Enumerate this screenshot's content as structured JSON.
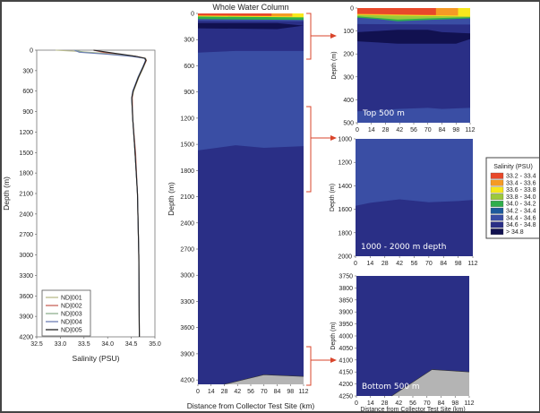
{
  "chart_data": [
    {
      "id": "profile",
      "type": "line",
      "title": "",
      "xlabel": "Salinity (PSU)",
      "ylabel": "Depth (m)",
      "xlim": [
        32.5,
        35.0
      ],
      "ylim": [
        0,
        4200
      ],
      "y_inverted": true,
      "xticks": [
        "32.5",
        "33.0",
        "33.5",
        "34.0",
        "34.5",
        "35.0"
      ],
      "yticks": [
        "0",
        "300",
        "600",
        "900",
        "1200",
        "1500",
        "1800",
        "2100",
        "2400",
        "2700",
        "3000",
        "3300",
        "3600",
        "3900",
        "4200"
      ],
      "legend_placement": "bottom-left",
      "series": [
        {
          "name": "ND|001",
          "color": "#b9bb8c",
          "points": [
            [
              0,
              32.9
            ],
            [
              20,
              33.4
            ],
            [
              50,
              34.0
            ],
            [
              80,
              34.5
            ],
            [
              120,
              34.8
            ],
            [
              150,
              34.82
            ],
            [
              250,
              34.76
            ],
            [
              400,
              34.66
            ],
            [
              600,
              34.55
            ],
            [
              700,
              34.52
            ],
            [
              1000,
              34.53
            ],
            [
              1500,
              34.58
            ],
            [
              2100,
              34.63
            ],
            [
              3000,
              34.66
            ],
            [
              4200,
              34.67
            ]
          ]
        },
        {
          "name": "ND|002",
          "color": "#c8645a",
          "points": [
            [
              0,
              33.7
            ],
            [
              30,
              33.9
            ],
            [
              60,
              34.2
            ],
            [
              90,
              34.6
            ],
            [
              120,
              34.8
            ],
            [
              150,
              34.82
            ],
            [
              250,
              34.75
            ],
            [
              400,
              34.65
            ],
            [
              600,
              34.54
            ],
            [
              700,
              34.52
            ],
            [
              1000,
              34.53
            ],
            [
              1500,
              34.59
            ],
            [
              2100,
              34.63
            ],
            [
              3000,
              34.66
            ],
            [
              4200,
              34.67
            ]
          ]
        },
        {
          "name": "ND|003",
          "color": "#8fb08f",
          "points": [
            [
              0,
              33.3
            ],
            [
              30,
              33.5
            ],
            [
              60,
              34.1
            ],
            [
              90,
              34.55
            ],
            [
              120,
              34.8
            ],
            [
              150,
              34.81
            ],
            [
              250,
              34.74
            ],
            [
              400,
              34.64
            ],
            [
              600,
              34.54
            ],
            [
              700,
              34.51
            ],
            [
              1000,
              34.53
            ],
            [
              1500,
              34.58
            ],
            [
              2100,
              34.63
            ],
            [
              3000,
              34.66
            ],
            [
              4200,
              34.67
            ]
          ]
        },
        {
          "name": "ND|004",
          "color": "#6e7fb5",
          "points": [
            [
              0,
              33.3
            ],
            [
              30,
              33.4
            ],
            [
              60,
              34.0
            ],
            [
              90,
              34.5
            ],
            [
              120,
              34.78
            ],
            [
              150,
              34.8
            ],
            [
              250,
              34.74
            ],
            [
              400,
              34.64
            ],
            [
              600,
              34.53
            ],
            [
              700,
              34.51
            ],
            [
              1000,
              34.53
            ],
            [
              1500,
              34.58
            ],
            [
              2100,
              34.63
            ],
            [
              3000,
              34.66
            ],
            [
              4200,
              34.67
            ]
          ]
        },
        {
          "name": "ND|005",
          "color": "#222222",
          "points": [
            [
              0,
              33.7
            ],
            [
              30,
              34.0
            ],
            [
              60,
              34.3
            ],
            [
              90,
              34.6
            ],
            [
              120,
              34.79
            ],
            [
              150,
              34.81
            ],
            [
              250,
              34.75
            ],
            [
              400,
              34.65
            ],
            [
              600,
              34.54
            ],
            [
              700,
              34.51
            ],
            [
              1000,
              34.53
            ],
            [
              1500,
              34.58
            ],
            [
              2100,
              34.63
            ],
            [
              3000,
              34.66
            ],
            [
              4200,
              34.67
            ]
          ]
        }
      ]
    },
    {
      "id": "whole",
      "type": "heatmap",
      "title": "Whole Water Column",
      "xlabel": "Distance from Collector Test Site (km)",
      "ylabel": "Depth (m)",
      "xlim": [
        0,
        112
      ],
      "ylim": [
        0,
        4250
      ],
      "y_inverted": true,
      "xticks": [
        "0",
        "14",
        "28",
        "42",
        "56",
        "70",
        "84",
        "98",
        "112"
      ],
      "yticks": [
        "0",
        "300",
        "600",
        "900",
        "1200",
        "1500",
        "1800",
        "2100",
        "2400",
        "2700",
        "3000",
        "3300",
        "3600",
        "3900",
        "4200"
      ],
      "background_class": "34.6 - 34.8",
      "regions": [
        {
          "class": "34.4 - 34.6",
          "points": [
            [
              0,
              450
            ],
            [
              40,
              430
            ],
            [
              112,
              430
            ],
            [
              112,
              1520
            ],
            [
              70,
              1540
            ],
            [
              40,
              1510
            ],
            [
              0,
              1570
            ]
          ]
        },
        {
          "class": "> 34.8",
          "points": [
            [
              0,
              110
            ],
            [
              84,
              110
            ],
            [
              112,
              140
            ],
            [
              84,
              180
            ],
            [
              0,
              170
            ]
          ]
        },
        {
          "class": "34.4 - 34.6",
          "points": [
            [
              0,
              40
            ],
            [
              112,
              40
            ],
            [
              112,
              90
            ],
            [
              0,
              85
            ]
          ]
        },
        {
          "class": "34.0 - 34.2",
          "points": [
            [
              0,
              30
            ],
            [
              112,
              30
            ],
            [
              112,
              75
            ],
            [
              0,
              65
            ]
          ]
        },
        {
          "class": "33.6 - 33.8",
          "points": [
            [
              0,
              0
            ],
            [
              112,
              0
            ],
            [
              112,
              45
            ],
            [
              0,
              35
            ]
          ]
        },
        {
          "class": "33.4 - 33.6",
          "points": [
            [
              0,
              0
            ],
            [
              100,
              0
            ],
            [
              100,
              35
            ],
            [
              0,
              28
            ]
          ]
        },
        {
          "class": "33.2 - 33.4",
          "points": [
            [
              0,
              0
            ],
            [
              78,
              0
            ],
            [
              78,
              28
            ],
            [
              0,
              22
            ]
          ]
        },
        {
          "class": "seafloor",
          "points": [
            [
              28,
              4250
            ],
            [
              70,
              4140
            ],
            [
              112,
              4160
            ],
            [
              112,
              4250
            ]
          ]
        }
      ]
    },
    {
      "id": "top",
      "type": "heatmap",
      "panel_label": "Top 500 m",
      "ylabel": "Depth (m)",
      "xlim": [
        0,
        112
      ],
      "ylim": [
        0,
        500
      ],
      "y_inverted": true,
      "xticks": [
        "0",
        "14",
        "28",
        "42",
        "56",
        "70",
        "84",
        "98",
        "112"
      ],
      "yticks": [
        "0",
        "100",
        "200",
        "300",
        "400",
        "500"
      ],
      "background_class": "34.6 - 34.8",
      "regions": [
        {
          "class": "34.4 - 34.6",
          "points": [
            [
              0,
              450
            ],
            [
              40,
              440
            ],
            [
              70,
              435
            ],
            [
              84,
              440
            ],
            [
              112,
              435
            ],
            [
              112,
              500
            ],
            [
              0,
              500
            ]
          ]
        },
        {
          "class": "34.4 - 34.6",
          "points": [
            [
              0,
              25
            ],
            [
              112,
              25
            ],
            [
              112,
              72
            ],
            [
              0,
              70
            ]
          ]
        },
        {
          "class": "> 34.8",
          "points": [
            [
              0,
              105
            ],
            [
              20,
              100
            ],
            [
              40,
              95
            ],
            [
              70,
              95
            ],
            [
              84,
              105
            ],
            [
              112,
              110
            ],
            [
              112,
              135
            ],
            [
              98,
              155
            ],
            [
              40,
              155
            ],
            [
              20,
              150
            ],
            [
              0,
              145
            ]
          ]
        },
        {
          "class": "34.0 - 34.2",
          "points": [
            [
              0,
              30
            ],
            [
              112,
              30
            ],
            [
              112,
              45
            ],
            [
              70,
              52
            ],
            [
              40,
              58
            ],
            [
              20,
              48
            ],
            [
              0,
              42
            ]
          ]
        },
        {
          "class": "33.8 - 34.0",
          "points": [
            [
              0,
              28
            ],
            [
              112,
              28
            ],
            [
              112,
              40
            ],
            [
              70,
              45
            ],
            [
              40,
              50
            ],
            [
              0,
              36
            ]
          ]
        },
        {
          "class": "33.6 - 33.8",
          "points": [
            [
              0,
              0
            ],
            [
              112,
              0
            ],
            [
              112,
              37
            ],
            [
              0,
              30
            ]
          ]
        },
        {
          "class": "33.4 - 33.6",
          "points": [
            [
              0,
              0
            ],
            [
              100,
              0
            ],
            [
              100,
              33
            ],
            [
              0,
              28
            ]
          ]
        },
        {
          "class": "33.2 - 33.4",
          "points": [
            [
              0,
              0
            ],
            [
              78,
              0
            ],
            [
              78,
              30
            ],
            [
              0,
              25
            ]
          ]
        }
      ]
    },
    {
      "id": "mid",
      "type": "heatmap",
      "panel_label": "1000 - 2000 m depth",
      "ylabel": "Depth (m)",
      "xlim": [
        0,
        112
      ],
      "ylim": [
        1000,
        2000
      ],
      "y_inverted": true,
      "xticks": [
        "0",
        "14",
        "28",
        "42",
        "56",
        "70",
        "84",
        "98",
        "112"
      ],
      "yticks": [
        "1000",
        "1200",
        "1400",
        "1600",
        "1800",
        "2000"
      ],
      "background_class": "34.6 - 34.8",
      "regions": [
        {
          "class": "34.4 - 34.6",
          "points": [
            [
              0,
              1000
            ],
            [
              112,
              1000
            ],
            [
              112,
              1520
            ],
            [
              98,
              1530
            ],
            [
              70,
              1540
            ],
            [
              42,
              1515
            ],
            [
              14,
              1545
            ],
            [
              0,
              1570
            ]
          ]
        }
      ]
    },
    {
      "id": "bot",
      "type": "heatmap",
      "panel_label": "Bottom 500 m",
      "xlabel": "Distance from Collector Test Site (km)",
      "ylabel": "Depth (m)",
      "xlim": [
        0,
        112
      ],
      "ylim": [
        3750,
        4250
      ],
      "y_inverted": true,
      "xticks": [
        "0",
        "14",
        "28",
        "42",
        "56",
        "70",
        "84",
        "98",
        "112"
      ],
      "yticks": [
        "3750",
        "3800",
        "3850",
        "3900",
        "3950",
        "4000",
        "4050",
        "4100",
        "4150",
        "4200",
        "4250"
      ],
      "background_class": "34.6 - 34.8",
      "regions": [
        {
          "class": "seafloor",
          "points": [
            [
              35,
              4250
            ],
            [
              75,
              4140
            ],
            [
              112,
              4150
            ],
            [
              112,
              4250
            ]
          ]
        }
      ]
    }
  ],
  "legend": {
    "title": "Salinity (PSU)",
    "entries": [
      {
        "label": "33.2 - 33.4",
        "color": "#e8482a"
      },
      {
        "label": "33.4 - 33.6",
        "color": "#f59a25"
      },
      {
        "label": "33.6 - 33.8",
        "color": "#f7e81c"
      },
      {
        "label": "33.8 - 34.0",
        "color": "#9cc93c"
      },
      {
        "label": "34.0 - 34.2",
        "color": "#2fae4c"
      },
      {
        "label": "34.2 - 34.4",
        "color": "#1d5a9c"
      },
      {
        "label": "34.4 - 34.6",
        "color": "#3a4ea4"
      },
      {
        "label": "34.6 - 34.8",
        "color": "#2a2f86"
      },
      {
        "label": "> 34.8",
        "color": "#111150"
      }
    ],
    "seafloor_color": "#b4b4b4",
    "arrow_color": "#d9452b"
  }
}
